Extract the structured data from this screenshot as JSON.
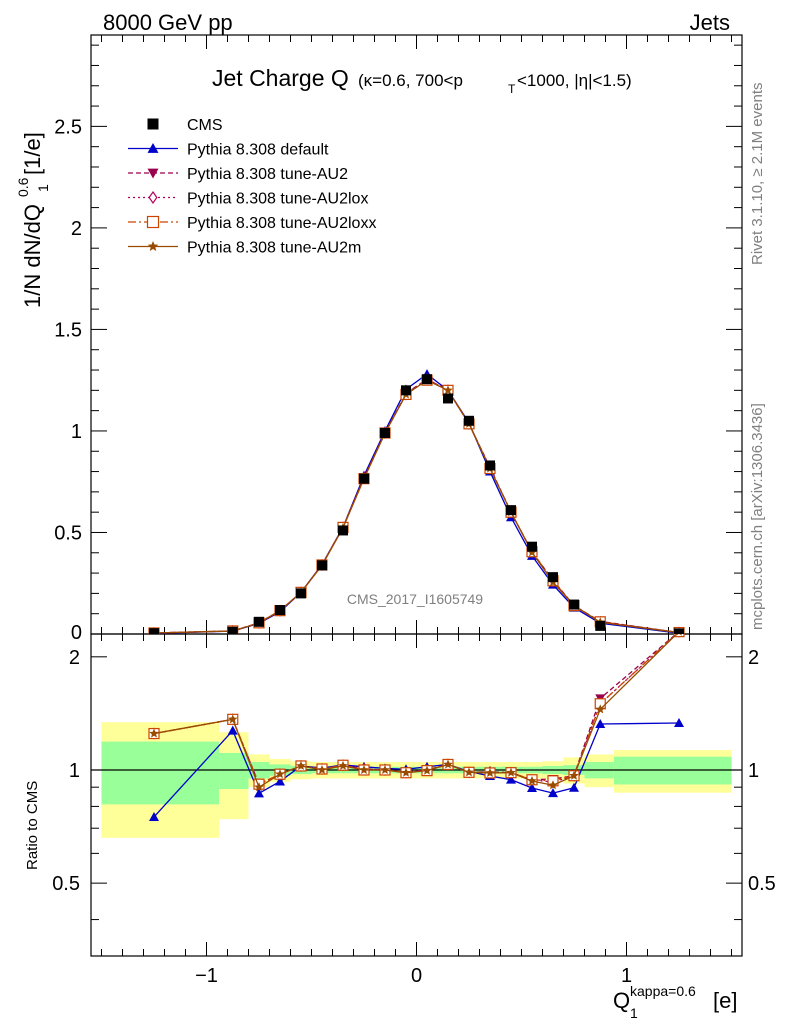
{
  "header": {
    "left": "8000 GeV pp",
    "right": "Jets"
  },
  "title": {
    "main": "Jet Charge Q",
    "cuts": "(κ=0.6, 700<p",
    "cuts_sub": "T",
    "cuts_tail": "<1000, |η|<1.5)"
  },
  "side_labels": {
    "rivet": "Rivet 3.1.10, ≥ 2.1M events",
    "mcplots": "mcplots.cern.ch [arXiv:1306.3436]"
  },
  "analysis_id": "CMS_2017_I1605749",
  "axes": {
    "ylabel_main": "1/N dN/dQ",
    "ylabel_main_sub": "1",
    "ylabel_main_sup": "0.6",
    "ylabel_main_unit": " [1/e]",
    "ylabel_ratio": "Ratio to CMS",
    "xlabel": "Q",
    "xlabel_sub": "1",
    "xlabel_sup": "kappa=0.6",
    "xlabel_unit": " [e]"
  },
  "chart_data": {
    "type": "scatter",
    "x": [
      -1.25,
      -0.875,
      -0.75,
      -0.65,
      -0.55,
      -0.45,
      -0.35,
      -0.25,
      -0.15,
      -0.05,
      0.05,
      0.15,
      0.25,
      0.35,
      0.45,
      0.55,
      0.65,
      0.75,
      0.875,
      1.25
    ],
    "xlim": [
      -1.55,
      1.55
    ],
    "ylim": [
      0,
      2.95
    ],
    "ratio_ylim": [
      0.32,
      2.3
    ],
    "xticks": [
      -1,
      0,
      1
    ],
    "xtick_labels": [
      "−1",
      "0",
      "1"
    ],
    "yticks": [
      0.5,
      1,
      1.5,
      2,
      2.5
    ],
    "ytick_labels": [
      "0.5",
      "1",
      "1.5",
      "2",
      "2.5"
    ],
    "y0_label": "0",
    "ratio_yticks": [
      0.5,
      1,
      2
    ],
    "ratio_ytick_labels": [
      "0.5",
      "1",
      "2"
    ],
    "legend_position": "top-left",
    "series": [
      {
        "name": "CMS",
        "color": "#000000",
        "marker": "square",
        "values": [
          0.004,
          0.011,
          0.06,
          0.118,
          0.2,
          0.338,
          0.51,
          0.765,
          0.99,
          1.2,
          1.255,
          1.16,
          1.05,
          0.83,
          0.61,
          0.43,
          0.28,
          0.145,
          0.04,
          0.003
        ]
      },
      {
        "name": "Pythia 8.308 default",
        "color": "#0000cc",
        "marker": "triangle-up",
        "dash": "",
        "values": [
          0.003,
          0.014,
          0.052,
          0.11,
          0.205,
          0.342,
          0.526,
          0.78,
          1.0,
          1.205,
          1.28,
          1.2,
          1.04,
          0.8,
          0.575,
          0.385,
          0.243,
          0.13,
          0.053,
          0.004
        ]
      },
      {
        "name": "Pythia 8.308 tune-AU2",
        "color": "#99004d",
        "marker": "triangle-down",
        "dash": "5,3",
        "values": [
          0.005,
          0.015,
          0.055,
          0.115,
          0.205,
          0.34,
          0.525,
          0.77,
          0.99,
          1.185,
          1.255,
          1.2,
          1.035,
          0.82,
          0.6,
          0.405,
          0.265,
          0.14,
          0.062,
          0.007
        ]
      },
      {
        "name": "Pythia 8.308 tune-AU2lox",
        "color": "#b30059",
        "marker": "diamond-open",
        "dash": "2,3",
        "values": [
          0.005,
          0.015,
          0.055,
          0.115,
          0.205,
          0.34,
          0.525,
          0.77,
          0.99,
          1.18,
          1.255,
          1.2,
          1.035,
          0.82,
          0.6,
          0.405,
          0.26,
          0.14,
          0.06,
          0.007
        ]
      },
      {
        "name": "Pythia 8.308 tune-AU2loxx",
        "color": "#cc4400",
        "marker": "square-open",
        "dash": "8,3,2,3",
        "values": [
          0.005,
          0.015,
          0.055,
          0.115,
          0.205,
          0.34,
          0.525,
          0.765,
          0.99,
          1.18,
          1.25,
          1.2,
          1.035,
          0.815,
          0.6,
          0.405,
          0.262,
          0.14,
          0.06,
          0.007
        ]
      },
      {
        "name": "Pythia 8.308 tune-AU2m",
        "color": "#994c00",
        "marker": "star",
        "dash": "",
        "values": [
          0.005,
          0.015,
          0.054,
          0.115,
          0.205,
          0.338,
          0.523,
          0.765,
          0.99,
          1.18,
          1.25,
          1.2,
          1.035,
          0.815,
          0.6,
          0.402,
          0.255,
          0.14,
          0.058,
          0.007
        ]
      }
    ],
    "ratio_band_edges": [
      -1.5,
      -0.94,
      -0.8,
      -0.7,
      -0.6,
      -0.5,
      -0.4,
      -0.3,
      -0.2,
      -0.1,
      0.0,
      0.1,
      0.2,
      0.3,
      0.4,
      0.5,
      0.6,
      0.7,
      0.8,
      0.94,
      1.5
    ],
    "ratio_band_stat": [
      0.19,
      0.11,
      0.05,
      0.035,
      0.025,
      0.02,
      0.02,
      0.02,
      0.02,
      0.02,
      0.02,
      0.02,
      0.02,
      0.02,
      0.02,
      0.02,
      0.025,
      0.03,
      0.05,
      0.085
    ],
    "ratio_band_total": [
      0.34,
      0.26,
      0.1,
      0.07,
      0.055,
      0.05,
      0.05,
      0.05,
      0.05,
      0.05,
      0.05,
      0.05,
      0.05,
      0.05,
      0.05,
      0.05,
      0.055,
      0.08,
      0.1,
      0.13
    ],
    "colors": {
      "band_stat": "#99ff99",
      "band_total": "#ffff99"
    }
  }
}
